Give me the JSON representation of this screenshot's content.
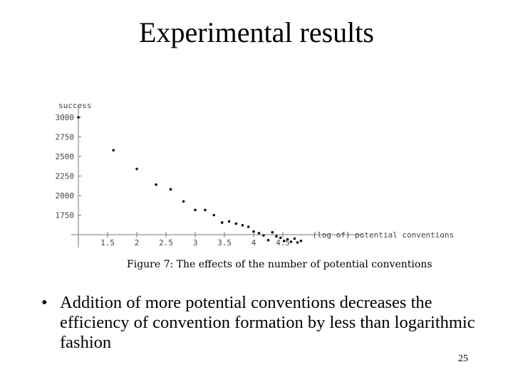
{
  "slide": {
    "title": "Experimental results",
    "figure_caption": "Figure 7: The effects of the number of potential conventions",
    "bullet_symbol": "•",
    "bullet": "Addition of more potential conventions decreases the efficiency of convention formation by less than logarithmic fashion",
    "page_number": "25"
  },
  "chart_data": {
    "type": "scatter",
    "title": "",
    "xlabel": "(log of) potential conventions",
    "ylabel": "success",
    "xlim": [
      1,
      5.25
    ],
    "ylim": [
      1500,
      3000
    ],
    "x_ticks": [
      1.5,
      2,
      2.5,
      3,
      3.5,
      4,
      4.5
    ],
    "x_tick_labels": [
      "1.5",
      "2",
      "2.5",
      "3",
      "3.5",
      "4",
      "4.5"
    ],
    "y_ticks": [
      1750,
      2000,
      2250,
      2500,
      2750,
      3000
    ],
    "y_tick_labels": [
      "1750",
      "2000",
      "2250",
      "2500",
      "2750",
      "3000"
    ],
    "grid": false,
    "points": [
      {
        "x": 1.0,
        "y": 3000
      },
      {
        "x": 1.6,
        "y": 2580
      },
      {
        "x": 2.0,
        "y": 2340
      },
      {
        "x": 2.33,
        "y": 2140
      },
      {
        "x": 2.58,
        "y": 2080
      },
      {
        "x": 2.8,
        "y": 1925
      },
      {
        "x": 3.0,
        "y": 1815
      },
      {
        "x": 3.17,
        "y": 1815
      },
      {
        "x": 3.32,
        "y": 1750
      },
      {
        "x": 3.46,
        "y": 1655
      },
      {
        "x": 3.58,
        "y": 1670
      },
      {
        "x": 3.7,
        "y": 1640
      },
      {
        "x": 3.81,
        "y": 1620
      },
      {
        "x": 3.91,
        "y": 1600
      },
      {
        "x": 4.0,
        "y": 1540
      },
      {
        "x": 4.09,
        "y": 1520
      },
      {
        "x": 4.17,
        "y": 1490
      },
      {
        "x": 4.25,
        "y": 1430
      },
      {
        "x": 4.32,
        "y": 1530
      },
      {
        "x": 4.39,
        "y": 1480
      },
      {
        "x": 4.46,
        "y": 1460
      },
      {
        "x": 4.52,
        "y": 1420
      },
      {
        "x": 4.58,
        "y": 1440
      },
      {
        "x": 4.64,
        "y": 1410
      },
      {
        "x": 4.7,
        "y": 1450
      },
      {
        "x": 4.75,
        "y": 1400
      },
      {
        "x": 4.81,
        "y": 1420
      }
    ]
  }
}
